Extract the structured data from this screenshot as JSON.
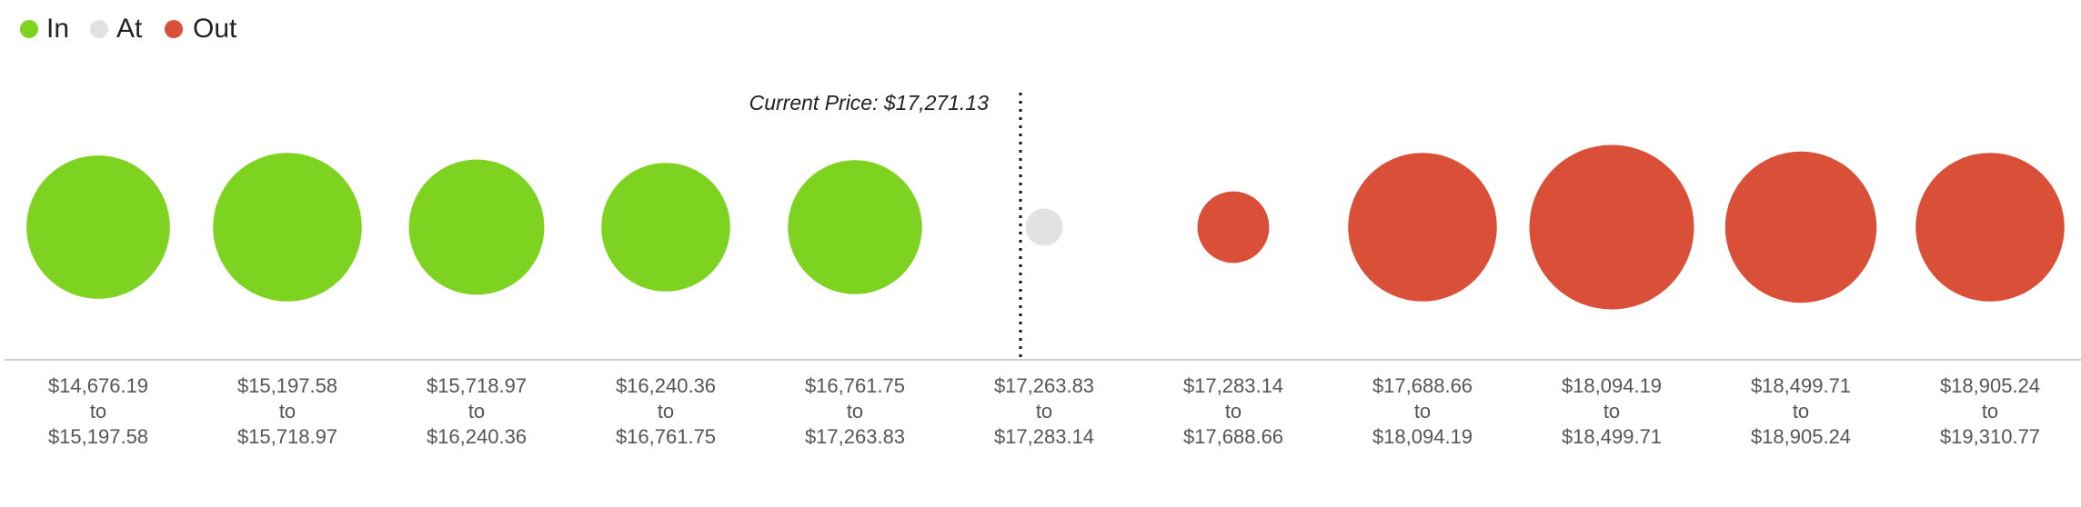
{
  "chart_data": {
    "type": "bubble",
    "annotation": "Current Price: $17,271.13",
    "categories": [
      [
        "$14,676.19",
        "to",
        "$15,197.58"
      ],
      [
        "$15,197.58",
        "to",
        "$15,718.97"
      ],
      [
        "$15,718.97",
        "to",
        "$16,240.36"
      ],
      [
        "$16,240.36",
        "to",
        "$16,761.75"
      ],
      [
        "$16,761.75",
        "to",
        "$17,263.83"
      ],
      [
        "$17,263.83",
        "to",
        "$17,283.14"
      ],
      [
        "$17,283.14",
        "to",
        "$17,688.66"
      ],
      [
        "$17,688.66",
        "to",
        "$18,094.19"
      ],
      [
        "$18,094.19",
        "to",
        "$18,499.71"
      ],
      [
        "$18,499.71",
        "to",
        "$18,905.24"
      ],
      [
        "$18,905.24",
        "to",
        "$19,310.77"
      ]
    ],
    "series": [
      {
        "name": "In",
        "color": "#7ed321",
        "values": [
          108,
          112,
          102,
          97,
          101,
          null,
          null,
          null,
          null,
          null,
          null
        ]
      },
      {
        "name": "At",
        "color": "#e2e2e2",
        "values": [
          null,
          null,
          null,
          null,
          null,
          28,
          null,
          null,
          null,
          null,
          null
        ]
      },
      {
        "name": "Out",
        "color": "#d94f38",
        "values": [
          null,
          null,
          null,
          null,
          null,
          null,
          54,
          112,
          124,
          114,
          112
        ]
      }
    ]
  }
}
